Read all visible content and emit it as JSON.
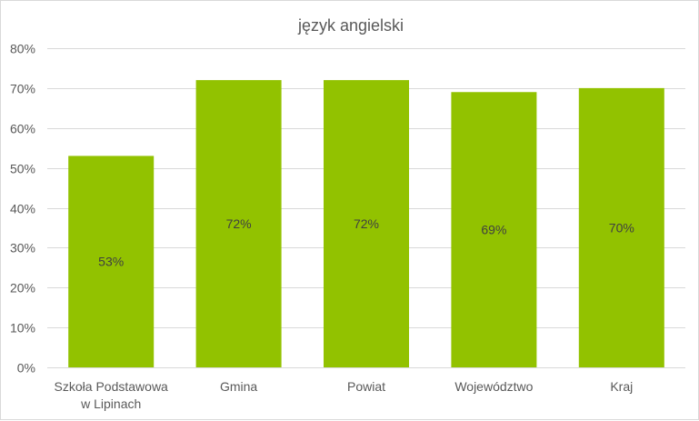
{
  "chart_data": {
    "type": "bar",
    "title": "język angielski",
    "categories": [
      [
        "Szkoła Podstawowa",
        "w Lipinach"
      ],
      [
        "Gmina"
      ],
      [
        "Powiat"
      ],
      [
        "Województwo"
      ],
      [
        "Kraj"
      ]
    ],
    "values": [
      53,
      72,
      72,
      69,
      70
    ],
    "value_labels": [
      "53%",
      "72%",
      "72%",
      "69%",
      "70%"
    ],
    "y_ticks": [
      "0%",
      "10%",
      "20%",
      "30%",
      "40%",
      "50%",
      "60%",
      "70%",
      "80%"
    ],
    "ylim": [
      0,
      80
    ],
    "grid": true,
    "legend": "none",
    "bar_color": "#92c200",
    "grid_color": "#d9d9d9"
  }
}
